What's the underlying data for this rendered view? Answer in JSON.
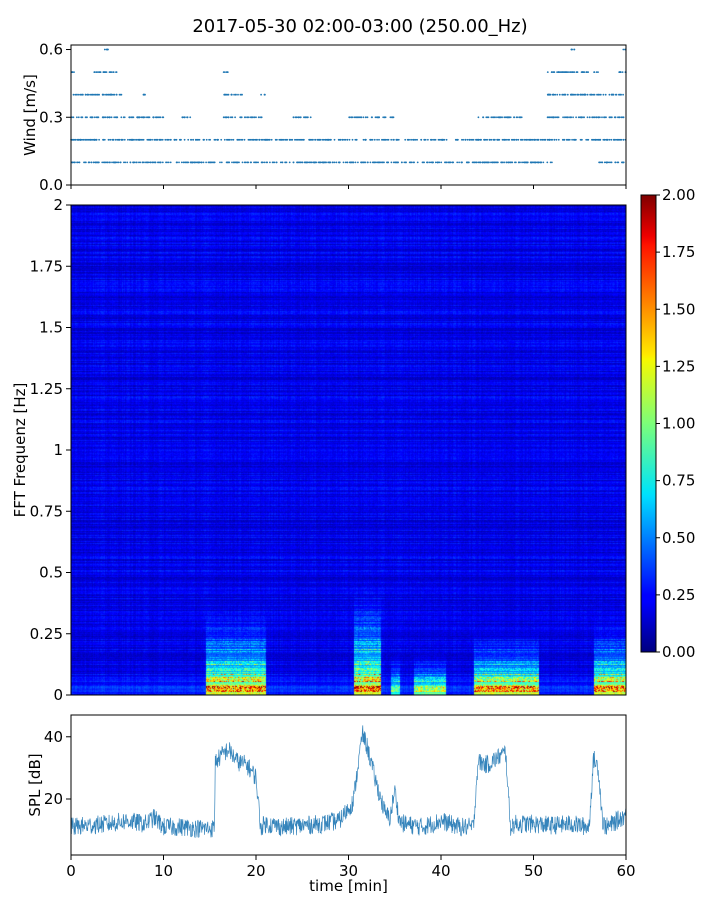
{
  "title": "2017-05-30 02:00-03:00 (250.00_Hz)",
  "colors": {
    "wind": "#1f77b4",
    "spl": "#1f77b4",
    "colormap": "jet"
  },
  "chart_data": [
    {
      "type": "scatter",
      "panel": "wind",
      "ylabel": "Wind [m/s]",
      "xlim": [
        0,
        60
      ],
      "ylim": [
        0,
        0.62
      ],
      "yticks": [
        "0.0",
        "0.3",
        "0.6"
      ],
      "ytick_values": [
        0.0,
        0.3,
        0.6
      ],
      "levels": [
        0.1,
        0.2,
        0.3,
        0.4,
        0.5,
        0.6
      ],
      "level_presence": [
        {
          "level": 0.6,
          "x_ranges": [
            [
              3.5,
              4.0
            ],
            [
              54.0,
              54.5
            ],
            [
              59.6,
              60.0
            ]
          ]
        },
        {
          "level": 0.5,
          "x_ranges": [
            [
              0,
              0.4
            ],
            [
              2.5,
              5.0
            ],
            [
              16.5,
              17.0
            ],
            [
              51.5,
              57.0
            ],
            [
              59.0,
              60.0
            ]
          ]
        },
        {
          "level": 0.4,
          "x_ranges": [
            [
              0,
              5.5
            ],
            [
              7.5,
              8.0
            ],
            [
              16.5,
              18.5
            ],
            [
              20.5,
              21.0
            ],
            [
              51.5,
              60.0
            ]
          ]
        },
        {
          "level": 0.3,
          "x_ranges": [
            [
              0,
              10.0
            ],
            [
              12.0,
              13.0
            ],
            [
              16.5,
              21.0
            ],
            [
              24.0,
              26.0
            ],
            [
              30.0,
              35.0
            ],
            [
              44.0,
              49.0
            ],
            [
              51.5,
              60.0
            ]
          ]
        },
        {
          "level": 0.2,
          "x_ranges": [
            [
              0,
              60.0
            ]
          ]
        },
        {
          "level": 0.1,
          "x_ranges": [
            [
              0,
              52.0
            ],
            [
              57.0,
              60.0
            ]
          ]
        }
      ]
    },
    {
      "type": "heatmap",
      "panel": "spectrogram",
      "ylabel": "FFT Frequenz [Hz]",
      "xlim": [
        0,
        60
      ],
      "ylim": [
        0,
        2
      ],
      "yticks": [
        "0",
        "0.25",
        "0.5",
        "0.75",
        "1",
        "1.25",
        "1.5",
        "1.75",
        "2"
      ],
      "ytick_values": [
        0,
        0.25,
        0.5,
        0.75,
        1,
        1.25,
        1.5,
        1.75,
        2
      ],
      "colorbar": {
        "range": [
          0,
          2
        ],
        "ticks": [
          "0.00",
          "0.25",
          "0.50",
          "0.75",
          "1.00",
          "1.25",
          "1.50",
          "1.75",
          "2.00"
        ],
        "tick_values": [
          0,
          0.25,
          0.5,
          0.75,
          1.0,
          1.25,
          1.5,
          1.75,
          2.0
        ]
      },
      "background_level": 0.2,
      "high_activity_intervals": [
        {
          "x": [
            14.5,
            21.0
          ],
          "peak": 2.0,
          "extent_hz": 0.4
        },
        {
          "x": [
            30.5,
            33.5
          ],
          "peak": 2.0,
          "extent_hz": 0.5
        },
        {
          "x": [
            34.5,
            35.5
          ],
          "peak": 1.2,
          "extent_hz": 0.2
        },
        {
          "x": [
            37.0,
            40.5
          ],
          "peak": 1.5,
          "extent_hz": 0.2
        },
        {
          "x": [
            43.5,
            50.5
          ],
          "peak": 2.0,
          "extent_hz": 0.3
        },
        {
          "x": [
            56.5,
            60.0
          ],
          "peak": 2.0,
          "extent_hz": 0.35
        }
      ]
    },
    {
      "type": "line",
      "panel": "spl",
      "ylabel": "SPL [dB]",
      "xlabel": "time [min]",
      "xlim": [
        0,
        60
      ],
      "ylim": [
        2,
        47
      ],
      "xticks": [
        "0",
        "10",
        "20",
        "30",
        "40",
        "50",
        "60"
      ],
      "xtick_values": [
        0,
        10,
        20,
        30,
        40,
        50,
        60
      ],
      "yticks": [
        "20",
        "40"
      ],
      "ytick_values": [
        20,
        40
      ],
      "x": [
        0,
        2,
        4,
        6,
        8,
        9,
        10,
        12,
        14,
        15.5,
        15.6,
        17,
        18,
        19,
        20,
        20.5,
        21,
        23,
        25,
        27,
        29,
        30.5,
        31.5,
        32,
        33,
        34,
        34.5,
        35,
        35.5,
        36,
        38,
        39,
        40,
        42,
        43.5,
        44,
        45,
        46,
        47,
        47.5,
        48,
        50,
        52,
        54,
        56,
        56.5,
        57,
        57.5,
        58,
        60
      ],
      "y": [
        11,
        11.5,
        12,
        13,
        12,
        14,
        11,
        11,
        10.5,
        10.5,
        32,
        36,
        32,
        31,
        27,
        11,
        12,
        11,
        11.5,
        12,
        13,
        19,
        41,
        37,
        25,
        15,
        14,
        23,
        13,
        12,
        11,
        12,
        13,
        11,
        11,
        32,
        31,
        33,
        35,
        11,
        12,
        12,
        11.5,
        12,
        11,
        33,
        30,
        12,
        11,
        15
      ],
      "noise_band_db": 3
    }
  ]
}
